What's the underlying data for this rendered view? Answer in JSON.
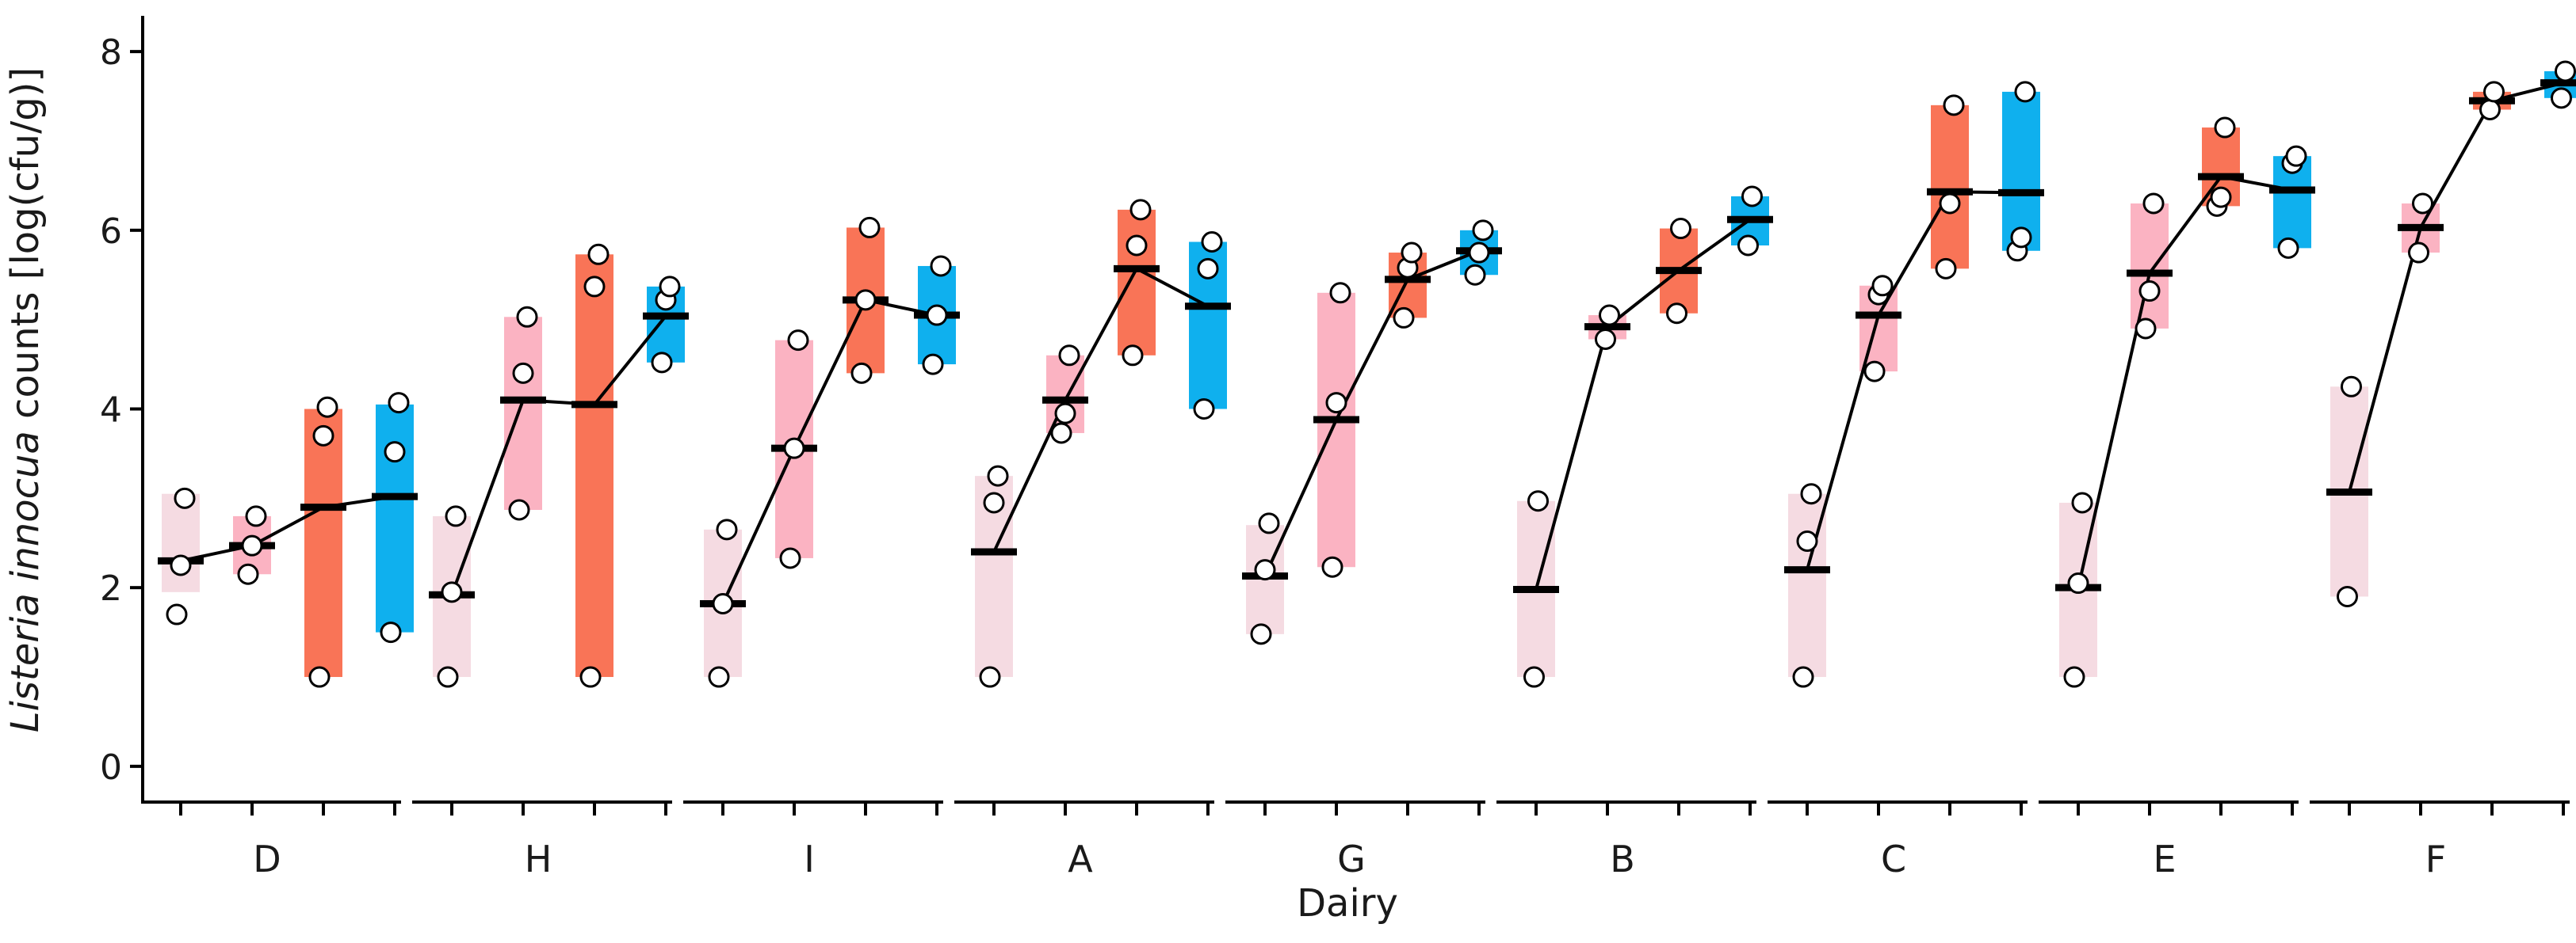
{
  "chart_data": {
    "type": "range-dot",
    "ylabel": {
      "italic": "Listeria innocua",
      "rest": " counts [log(cfu/g)]"
    },
    "xlabel": "Dairy",
    "ylim": [
      -0.4,
      8.4
    ],
    "yticks": [
      0,
      2,
      4,
      6,
      8
    ],
    "grid": false,
    "stage_colors": [
      "#f5dbe2",
      "#fbb3c2",
      "#f97457",
      "#0fb0ee"
    ],
    "categories": [
      "D",
      "H",
      "I",
      "A",
      "G",
      "B",
      "C",
      "E",
      "F"
    ],
    "groups": [
      {
        "label": "D",
        "stages": [
          {
            "min": 1.95,
            "max": 3.05,
            "mean": 2.3,
            "points": [
              1.7,
              2.25,
              3.0
            ]
          },
          {
            "min": 2.15,
            "max": 2.8,
            "mean": 2.47,
            "points": [
              2.15,
              2.47,
              2.8
            ]
          },
          {
            "min": 1.0,
            "max": 4.0,
            "mean": 2.9,
            "points": [
              1.0,
              3.7,
              4.02
            ]
          },
          {
            "min": 1.5,
            "max": 4.05,
            "mean": 3.02,
            "points": [
              1.5,
              3.52,
              4.07
            ]
          }
        ]
      },
      {
        "label": "H",
        "stages": [
          {
            "min": 1.0,
            "max": 2.8,
            "mean": 1.92,
            "points": [
              1.0,
              1.95,
              2.8
            ]
          },
          {
            "min": 2.87,
            "max": 5.03,
            "mean": 4.1,
            "points": [
              2.87,
              4.4,
              5.03
            ]
          },
          {
            "min": 1.0,
            "max": 5.73,
            "mean": 4.05,
            "points": [
              1.0,
              5.37,
              5.73
            ]
          },
          {
            "min": 4.52,
            "max": 5.37,
            "mean": 5.04,
            "points": [
              4.52,
              5.22,
              5.37
            ]
          }
        ]
      },
      {
        "label": "I",
        "stages": [
          {
            "min": 1.0,
            "max": 2.65,
            "mean": 1.82,
            "points": [
              1.0,
              1.82,
              2.65
            ]
          },
          {
            "min": 2.33,
            "max": 4.77,
            "mean": 3.56,
            "points": [
              2.33,
              3.56,
              4.77
            ]
          },
          {
            "min": 4.4,
            "max": 6.03,
            "mean": 5.22,
            "points": [
              4.4,
              5.22,
              6.03
            ]
          },
          {
            "min": 4.5,
            "max": 5.6,
            "mean": 5.05,
            "points": [
              4.5,
              5.05,
              5.6
            ]
          }
        ]
      },
      {
        "label": "A",
        "stages": [
          {
            "min": 1.0,
            "max": 3.25,
            "mean": 2.4,
            "points": [
              1.0,
              2.95,
              3.25
            ]
          },
          {
            "min": 3.73,
            "max": 4.6,
            "mean": 4.1,
            "points": [
              3.73,
              3.95,
              4.6
            ]
          },
          {
            "min": 4.6,
            "max": 6.23,
            "mean": 5.57,
            "points": [
              4.6,
              5.83,
              6.23
            ]
          },
          {
            "min": 4.0,
            "max": 5.87,
            "mean": 5.15,
            "points": [
              4.0,
              5.57,
              5.87
            ]
          }
        ]
      },
      {
        "label": "G",
        "stages": [
          {
            "min": 1.48,
            "max": 2.7,
            "mean": 2.13,
            "points": [
              1.48,
              2.2,
              2.72
            ]
          },
          {
            "min": 2.23,
            "max": 5.3,
            "mean": 3.88,
            "points": [
              2.23,
              4.07,
              5.3
            ]
          },
          {
            "min": 5.02,
            "max": 5.75,
            "mean": 5.45,
            "points": [
              5.02,
              5.58,
              5.75
            ]
          },
          {
            "min": 5.5,
            "max": 6.0,
            "mean": 5.77,
            "points": [
              5.5,
              5.75,
              6.0
            ]
          }
        ]
      },
      {
        "label": "B",
        "stages": [
          {
            "min": 1.0,
            "max": 2.97,
            "mean": 1.98,
            "points": [
              1.0,
              2.97
            ]
          },
          {
            "min": 4.78,
            "max": 5.05,
            "mean": 4.92,
            "points": [
              4.78,
              5.05
            ]
          },
          {
            "min": 5.07,
            "max": 6.02,
            "mean": 5.55,
            "points": [
              5.07,
              6.02
            ]
          },
          {
            "min": 5.83,
            "max": 6.38,
            "mean": 6.12,
            "points": [
              5.83,
              6.38
            ]
          }
        ]
      },
      {
        "label": "C",
        "stages": [
          {
            "min": 1.0,
            "max": 3.05,
            "mean": 2.2,
            "points": [
              1.0,
              2.52,
              3.05
            ]
          },
          {
            "min": 4.42,
            "max": 5.38,
            "mean": 5.05,
            "points": [
              4.42,
              5.28,
              5.38
            ]
          },
          {
            "min": 5.57,
            "max": 7.4,
            "mean": 6.43,
            "points": [
              5.57,
              6.3,
              7.4
            ]
          },
          {
            "min": 5.77,
            "max": 7.55,
            "mean": 6.42,
            "points": [
              5.77,
              5.92,
              7.55
            ]
          }
        ]
      },
      {
        "label": "E",
        "stages": [
          {
            "min": 1.0,
            "max": 2.95,
            "mean": 2.0,
            "points": [
              1.0,
              2.05,
              2.95
            ]
          },
          {
            "min": 4.9,
            "max": 6.3,
            "mean": 5.52,
            "points": [
              4.9,
              5.32,
              6.3
            ]
          },
          {
            "min": 6.27,
            "max": 7.15,
            "mean": 6.6,
            "points": [
              6.27,
              6.37,
              7.15
            ]
          },
          {
            "min": 5.8,
            "max": 6.83,
            "mean": 6.45,
            "points": [
              5.8,
              6.75,
              6.83
            ]
          }
        ]
      },
      {
        "label": "F",
        "stages": [
          {
            "min": 1.9,
            "max": 4.25,
            "mean": 3.07,
            "points": [
              1.9,
              4.25
            ]
          },
          {
            "min": 5.75,
            "max": 6.3,
            "mean": 6.03,
            "points": [
              5.75,
              6.3
            ]
          },
          {
            "min": 7.35,
            "max": 7.55,
            "mean": 7.45,
            "points": [
              7.35,
              7.55
            ]
          },
          {
            "min": 7.48,
            "max": 7.78,
            "mean": 7.65,
            "points": [
              7.48,
              7.78
            ]
          }
        ]
      }
    ]
  }
}
